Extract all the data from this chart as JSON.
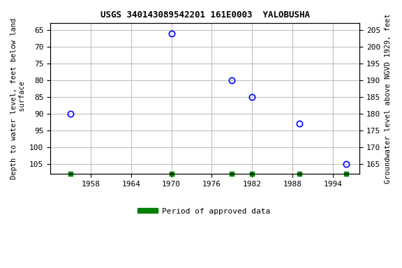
{
  "title": "USGS 340143089542201 161E0003  YALOBUSHA",
  "ylabel_left": "Depth to water level, feet below land\n surface",
  "ylabel_right": "Groundwater level above NGVD 1929, feet",
  "data_years": [
    1955,
    1970,
    1979,
    1982,
    1989,
    1996
  ],
  "data_depth": [
    90,
    66,
    80,
    85,
    93,
    105
  ],
  "ylim_left": [
    108,
    63
  ],
  "ylim_right": [
    162,
    207
  ],
  "yticks_left": [
    65,
    70,
    75,
    80,
    85,
    90,
    95,
    100,
    105
  ],
  "yticks_right": [
    205,
    200,
    195,
    190,
    185,
    180,
    175,
    170,
    165
  ],
  "xticks": [
    1958,
    1964,
    1970,
    1976,
    1982,
    1988,
    1994
  ],
  "xlim": [
    1952,
    1998
  ],
  "point_color": "#0000ff",
  "bg_color": "#ffffff",
  "grid_color": "#c0c0c0",
  "legend_label": "Period of approved data",
  "legend_color": "#008000",
  "approved_x": [
    1955,
    1970,
    1979,
    1982,
    1989,
    1996
  ],
  "marker_size": 6
}
